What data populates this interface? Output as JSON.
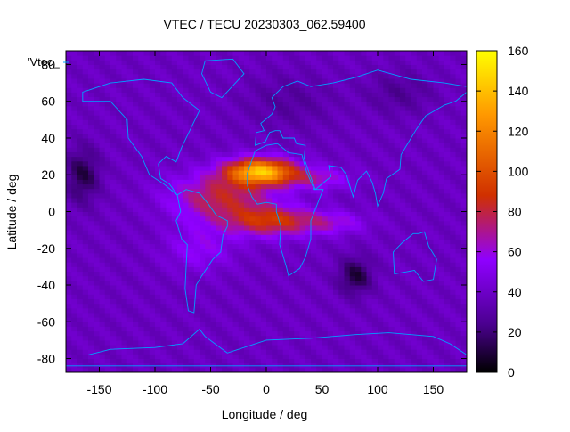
{
  "chart_data": {
    "type": "heatmap",
    "title": "VTEC / TECU 20230303_062.59400",
    "xlabel": "Longitude / deg",
    "ylabel": "Latitude / deg",
    "xlim": [
      -180,
      180
    ],
    "ylim": [
      -87.5,
      87.5
    ],
    "x_ticks": [
      -150,
      -100,
      -50,
      0,
      50,
      100,
      150
    ],
    "y_ticks": [
      -80,
      -60,
      -40,
      -20,
      0,
      20,
      40,
      60,
      80
    ],
    "colorbar": {
      "min": 0,
      "max": 160,
      "ticks": [
        0,
        20,
        40,
        60,
        80,
        100,
        120,
        140,
        160
      ]
    },
    "legend_label": "'Vtec_",
    "colors": [
      "#000000",
      "#4b0090",
      "#8f00ff",
      "#d03000",
      "#ff9800",
      "#ffff00"
    ],
    "grid": false,
    "overlay": "coastlines",
    "background_vtec": 38,
    "anomalies": [
      {
        "lon": -5,
        "lat": 22,
        "slon": 30,
        "slat": 7,
        "amp": 100
      },
      {
        "lon": -40,
        "lat": 8,
        "slon": 45,
        "slat": 13,
        "amp": 42
      },
      {
        "lon": 5,
        "lat": -5,
        "slon": 40,
        "slat": 8,
        "amp": 48
      },
      {
        "lon": 45,
        "lat": 18,
        "slon": 30,
        "slat": 6,
        "amp": 26
      },
      {
        "lon": 60,
        "lat": -6,
        "slon": 30,
        "slat": 6,
        "amp": 20
      },
      {
        "lon": -60,
        "lat": -20,
        "slon": 30,
        "slat": 12,
        "amp": 18
      },
      {
        "lon": -165,
        "lat": 20,
        "slon": 15,
        "slat": 15,
        "amp": -26
      },
      {
        "lon": 80,
        "lat": -35,
        "slon": 15,
        "slat": 10,
        "amp": -28
      },
      {
        "lon": 20,
        "lat": 60,
        "slon": 40,
        "slat": 15,
        "amp": -10
      },
      {
        "lon": 120,
        "lat": 65,
        "slon": 30,
        "slat": 12,
        "amp": -12
      }
    ],
    "continents": [
      {
        "name": "north-america",
        "points": [
          [
            -165,
            65
          ],
          [
            -140,
            70
          ],
          [
            -110,
            72
          ],
          [
            -85,
            70
          ],
          [
            -75,
            62
          ],
          [
            -60,
            55
          ],
          [
            -68,
            45
          ],
          [
            -76,
            35
          ],
          [
            -81,
            27
          ],
          [
            -90,
            30
          ],
          [
            -97,
            26
          ],
          [
            -95,
            18
          ],
          [
            -87,
            15
          ],
          [
            -80,
            9
          ],
          [
            -92,
            15
          ],
          [
            -105,
            20
          ],
          [
            -112,
            30
          ],
          [
            -124,
            40
          ],
          [
            -125,
            50
          ],
          [
            -140,
            60
          ],
          [
            -165,
            60
          ]
        ]
      },
      {
        "name": "greenland",
        "points": [
          [
            -55,
            82
          ],
          [
            -30,
            83
          ],
          [
            -20,
            75
          ],
          [
            -40,
            62
          ],
          [
            -50,
            65
          ],
          [
            -58,
            75
          ]
        ]
      },
      {
        "name": "south-america",
        "points": [
          [
            -80,
            9
          ],
          [
            -77,
            0
          ],
          [
            -81,
            -5
          ],
          [
            -76,
            -15
          ],
          [
            -71,
            -18
          ],
          [
            -72,
            -30
          ],
          [
            -73,
            -42
          ],
          [
            -70,
            -54
          ],
          [
            -65,
            -55
          ],
          [
            -63,
            -40
          ],
          [
            -58,
            -35
          ],
          [
            -48,
            -26
          ],
          [
            -41,
            -22
          ],
          [
            -39,
            -13
          ],
          [
            -35,
            -8
          ],
          [
            -35,
            -5
          ],
          [
            -45,
            -2
          ],
          [
            -52,
            4
          ],
          [
            -60,
            10
          ],
          [
            -72,
            12
          ]
        ]
      },
      {
        "name": "africa",
        "points": [
          [
            -17,
            21
          ],
          [
            -10,
            33
          ],
          [
            0,
            36
          ],
          [
            10,
            37
          ],
          [
            20,
            32
          ],
          [
            32,
            31
          ],
          [
            36,
            22
          ],
          [
            43,
            12
          ],
          [
            51,
            12
          ],
          [
            40,
            -5
          ],
          [
            40,
            -15
          ],
          [
            35,
            -25
          ],
          [
            30,
            -31
          ],
          [
            20,
            -35
          ],
          [
            18,
            -30
          ],
          [
            12,
            -18
          ],
          [
            13,
            -8
          ],
          [
            9,
            0
          ],
          [
            9,
            4
          ],
          [
            0,
            5
          ],
          [
            -8,
            4
          ],
          [
            -13,
            8
          ],
          [
            -17,
            14
          ]
        ]
      },
      {
        "name": "eurasia",
        "points": [
          [
            -10,
            36
          ],
          [
            -9,
            43
          ],
          [
            -2,
            44
          ],
          [
            -5,
            48
          ],
          [
            5,
            53
          ],
          [
            8,
            57
          ],
          [
            5,
            62
          ],
          [
            15,
            68
          ],
          [
            28,
            71
          ],
          [
            40,
            68
          ],
          [
            60,
            70
          ],
          [
            80,
            73
          ],
          [
            100,
            77
          ],
          [
            130,
            72
          ],
          [
            160,
            70
          ],
          [
            180,
            68
          ],
          [
            180,
            65
          ],
          [
            170,
            60
          ],
          [
            160,
            58
          ],
          [
            143,
            52
          ],
          [
            135,
            45
          ],
          [
            128,
            38
          ],
          [
            121,
            31
          ],
          [
            120,
            23
          ],
          [
            108,
            18
          ],
          [
            105,
            10
          ],
          [
            100,
            3
          ],
          [
            98,
            10
          ],
          [
            95,
            16
          ],
          [
            90,
            22
          ],
          [
            82,
            17
          ],
          [
            78,
            8
          ],
          [
            72,
            20
          ],
          [
            67,
            24
          ],
          [
            56,
            25
          ],
          [
            58,
            19
          ],
          [
            52,
            16
          ],
          [
            44,
            12
          ],
          [
            38,
            22
          ],
          [
            34,
            29
          ],
          [
            35,
            36
          ],
          [
            27,
            37
          ],
          [
            25,
            40
          ],
          [
            15,
            40
          ],
          [
            12,
            44
          ],
          [
            8,
            44
          ],
          [
            3,
            43
          ],
          [
            -1,
            38
          ]
        ]
      },
      {
        "name": "australia",
        "points": [
          [
            114,
            -22
          ],
          [
            122,
            -17
          ],
          [
            132,
            -12
          ],
          [
            137,
            -12
          ],
          [
            142,
            -11
          ],
          [
            146,
            -19
          ],
          [
            153,
            -26
          ],
          [
            150,
            -37
          ],
          [
            141,
            -38
          ],
          [
            133,
            -32
          ],
          [
            124,
            -33
          ],
          [
            115,
            -34
          ]
        ]
      },
      {
        "name": "antarctica",
        "points": [
          [
            -180,
            -84
          ],
          [
            -180,
            -78
          ],
          [
            -160,
            -78
          ],
          [
            -140,
            -75
          ],
          [
            -100,
            -74
          ],
          [
            -75,
            -72
          ],
          [
            -60,
            -64
          ],
          [
            -55,
            -68
          ],
          [
            -35,
            -77
          ],
          [
            0,
            -70
          ],
          [
            40,
            -69
          ],
          [
            80,
            -67
          ],
          [
            110,
            -66
          ],
          [
            150,
            -68
          ],
          [
            165,
            -72
          ],
          [
            180,
            -78
          ],
          [
            180,
            -84
          ]
        ]
      }
    ]
  }
}
